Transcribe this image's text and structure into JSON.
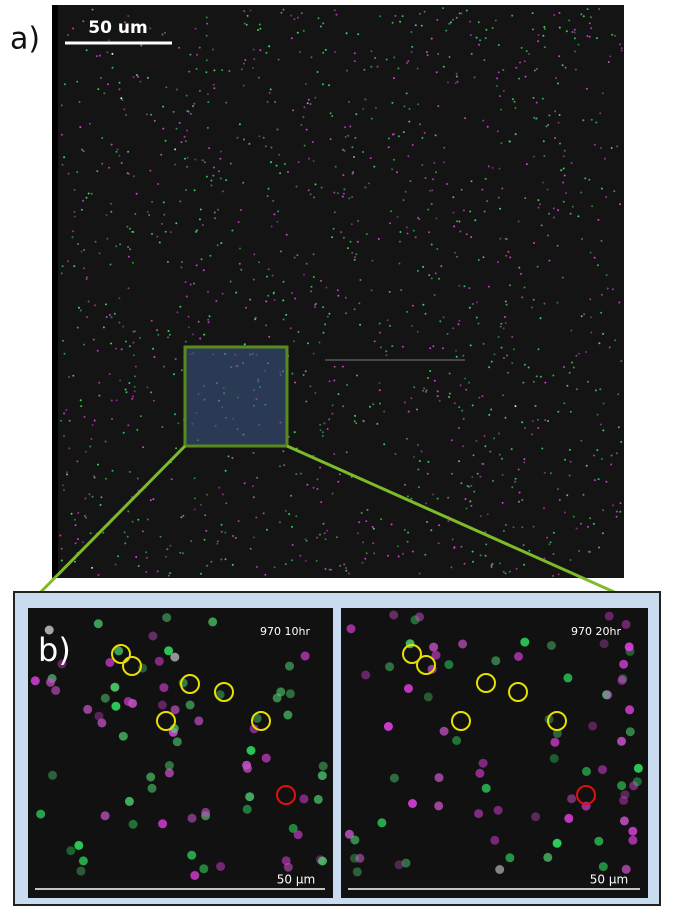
{
  "panel_a": {
    "label": "a)",
    "scale_bar": "50 um"
  },
  "panel_b": {
    "label": "b)",
    "images": [
      {
        "caption": "970 10hr",
        "scale_bar": "50 μm"
      },
      {
        "caption": "970 20hr",
        "scale_bar": "50 μm"
      }
    ]
  }
}
